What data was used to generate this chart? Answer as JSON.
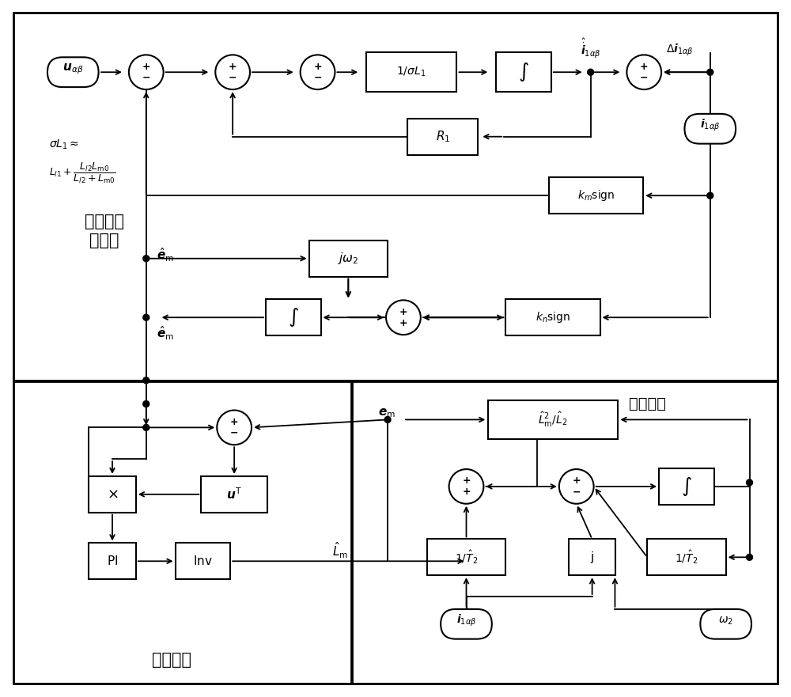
{
  "fig_width": 10.0,
  "fig_height": 8.81,
  "dpi": 100,
  "upper_label": "反电动势\n观测器",
  "lower_left_label": "自适应率",
  "lower_right_label": "可调模型"
}
